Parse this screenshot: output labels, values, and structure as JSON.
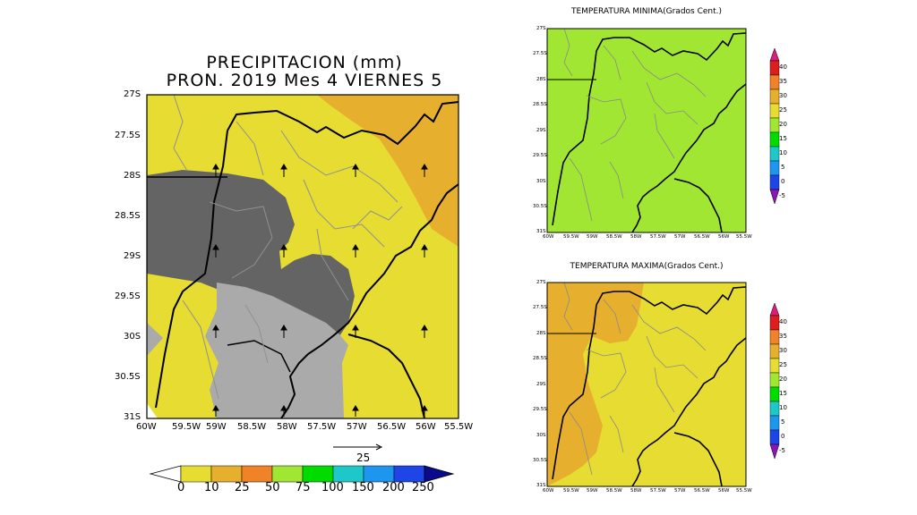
{
  "main_map": {
    "title_line1": "PRECIPITACION (mm)",
    "title_line2": "PRON. 2019 Mes 4 VIERNES 5",
    "y_ticks": [
      "27S",
      "27.5S",
      "28S",
      "28.5S",
      "29S",
      "29.5S",
      "30S",
      "30.5S",
      "31S"
    ],
    "x_ticks": [
      "60W",
      "59.5W",
      "59W",
      "58.5W",
      "58W",
      "57.5W",
      "57W",
      "56.5W",
      "56W",
      "55.5W"
    ],
    "vector_reference": "25",
    "colorbar_labels": [
      "0",
      "10",
      "25",
      "50",
      "75",
      "100",
      "150",
      "200",
      "250"
    ],
    "colorbar_colors": [
      "#ffffff",
      "#e6dc32",
      "#e6af2d",
      "#f08228",
      "#a0e632",
      "#00dc00",
      "#1ec8c8",
      "#1e96f0",
      "#1e46e6",
      "#0a0a8c"
    ],
    "fill_colors": {
      "yellow": "#e6dc32",
      "orange": "#e6af2d",
      "dark_gray": "#646464",
      "light_gray": "#aaaaaa"
    }
  },
  "min_temp_map": {
    "title": "TEMPERATURA MINIMA(Grados Cent.)",
    "fill_color": "#a0e632"
  },
  "max_temp_map": {
    "title": "TEMPERATURA MAXIMA(Grados Cent.)",
    "fill_colors": {
      "yellow": "#e6dc32",
      "orange": "#e6af2d"
    }
  },
  "small_maps": {
    "y_ticks": [
      "27S",
      "27.5S",
      "28S",
      "28.5S",
      "29S",
      "29.5S",
      "30S",
      "30.5S",
      "31S"
    ],
    "x_ticks": [
      "60W",
      "59.5W",
      "59W",
      "58.5W",
      "58W",
      "57.5W",
      "57W",
      "56.5W",
      "56W",
      "55.5W"
    ],
    "colorbar_labels": [
      "-5",
      "0",
      "5",
      "10",
      "15",
      "20",
      "25",
      "30",
      "35",
      "40"
    ],
    "colorbar_colors": [
      "#8c14b4",
      "#1e46e6",
      "#1e96f0",
      "#1ec8c8",
      "#00dc00",
      "#a0e632",
      "#e6dc32",
      "#e6af2d",
      "#f08228",
      "#dc1e1e",
      "#dc1e78"
    ]
  }
}
